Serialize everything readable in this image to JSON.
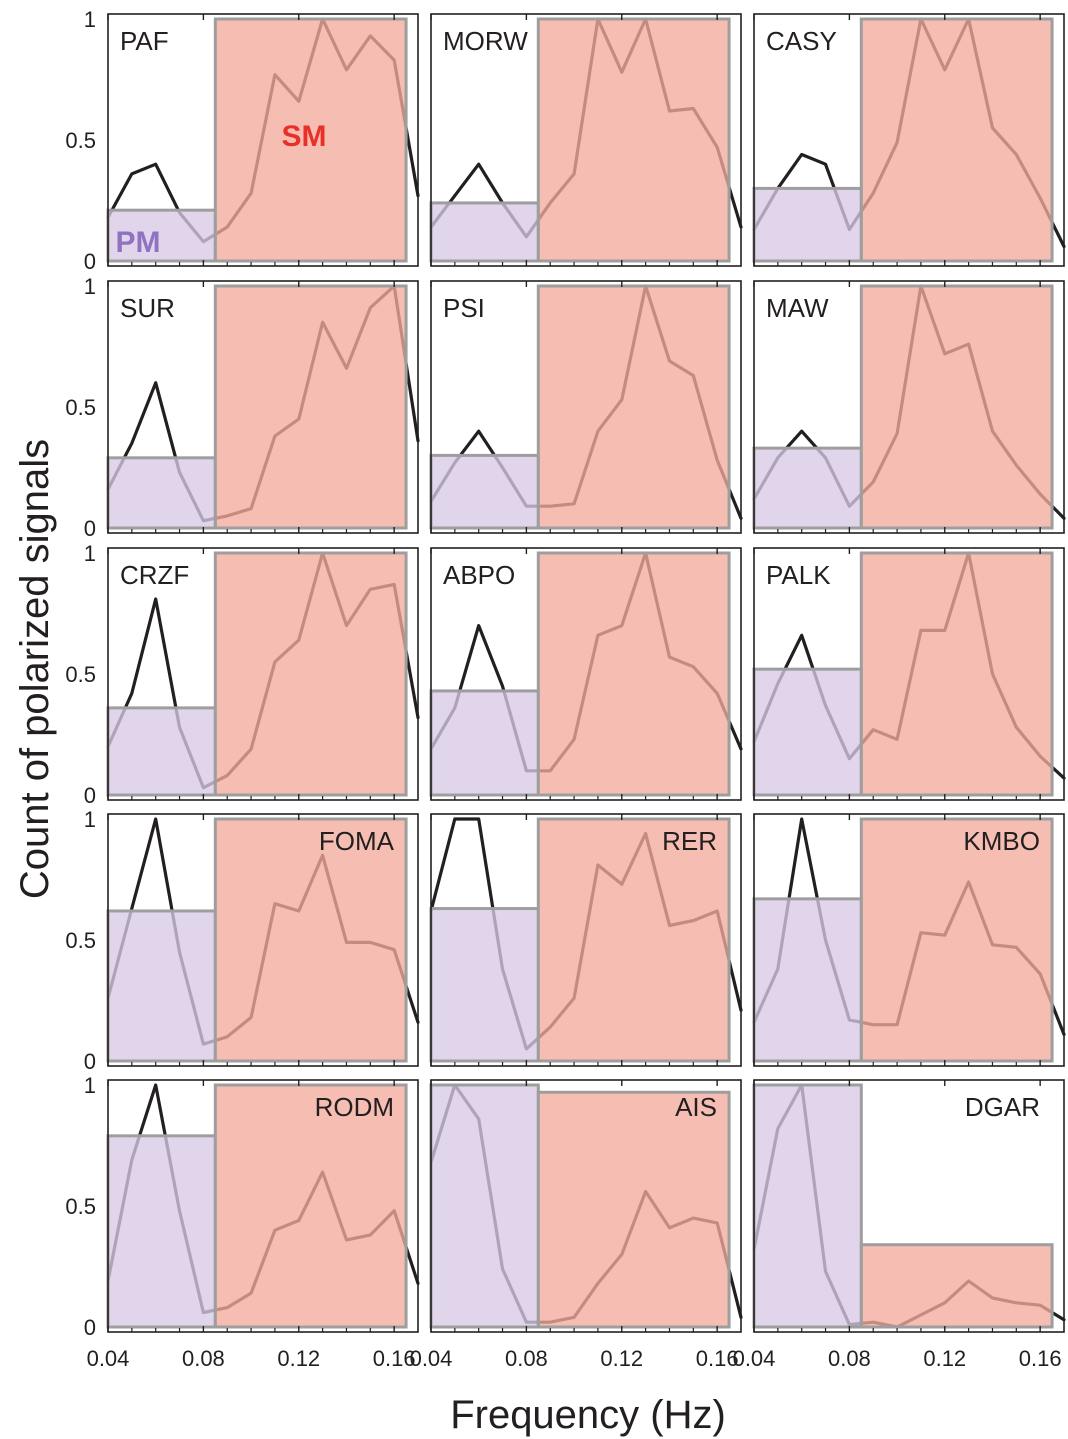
{
  "figure": {
    "ylabel": "Count of polarized signals",
    "xlabel": "Frequency (Hz)",
    "pm_label": "PM",
    "sm_label": "SM"
  },
  "colors": {
    "pm_fill": "#d7c9e4",
    "sm_fill": "#f4ab9c",
    "box_border": "#9e9e9e",
    "curve": "#231f20",
    "sm_label": "#e8302a",
    "pm_label": "#8f72c0"
  },
  "chart_data": {
    "type": "line",
    "xlabel": "Frequency (Hz)",
    "ylabel": "Count of polarized signals",
    "xlim": [
      0.04,
      0.17
    ],
    "ylim": [
      0,
      1
    ],
    "x_ticks": [
      "0.04",
      "0.08",
      "0.12",
      "0.16"
    ],
    "y_ticks": [
      "0",
      "0.5",
      "1"
    ],
    "frequencies": [
      0.04,
      0.05,
      0.06,
      0.07,
      0.08,
      0.09,
      0.1,
      0.11,
      0.12,
      0.13,
      0.14,
      0.15,
      0.16,
      0.17
    ],
    "pm_band": [
      0.04,
      0.085
    ],
    "sm_band": [
      0.085,
      0.165
    ],
    "panels": [
      {
        "station": "PAF",
        "pm_level": 0.21,
        "sm_level": 1.0,
        "values": [
          0.18,
          0.36,
          0.4,
          0.2,
          0.08,
          0.14,
          0.28,
          0.77,
          0.66,
          1.0,
          0.79,
          0.93,
          0.83,
          0.27
        ]
      },
      {
        "station": "MORW",
        "pm_level": 0.24,
        "sm_level": 1.0,
        "values": [
          0.14,
          0.27,
          0.4,
          0.24,
          0.1,
          0.24,
          0.36,
          1.0,
          0.78,
          1.0,
          0.62,
          0.63,
          0.47,
          0.14
        ]
      },
      {
        "station": "CASY",
        "pm_level": 0.3,
        "sm_level": 1.0,
        "values": [
          0.13,
          0.3,
          0.44,
          0.4,
          0.13,
          0.28,
          0.49,
          1.0,
          0.79,
          1.0,
          0.55,
          0.44,
          0.26,
          0.06
        ]
      },
      {
        "station": "SUR",
        "pm_level": 0.29,
        "sm_level": 1.0,
        "values": [
          0.16,
          0.35,
          0.6,
          0.23,
          0.03,
          0.05,
          0.08,
          0.38,
          0.45,
          0.85,
          0.66,
          0.91,
          1.0,
          0.36
        ]
      },
      {
        "station": "PSI",
        "pm_level": 0.3,
        "sm_level": 1.0,
        "values": [
          0.11,
          0.27,
          0.4,
          0.25,
          0.09,
          0.09,
          0.1,
          0.4,
          0.53,
          1.0,
          0.69,
          0.63,
          0.28,
          0.04
        ]
      },
      {
        "station": "MAW",
        "pm_level": 0.33,
        "sm_level": 1.0,
        "values": [
          0.12,
          0.29,
          0.4,
          0.29,
          0.09,
          0.19,
          0.39,
          1.0,
          0.72,
          0.76,
          0.4,
          0.26,
          0.14,
          0.04
        ]
      },
      {
        "station": "CRZF",
        "pm_level": 0.36,
        "sm_level": 1.0,
        "values": [
          0.2,
          0.42,
          0.81,
          0.28,
          0.03,
          0.08,
          0.19,
          0.55,
          0.64,
          1.0,
          0.7,
          0.85,
          0.87,
          0.32
        ]
      },
      {
        "station": "ABPO",
        "pm_level": 0.43,
        "sm_level": 1.0,
        "values": [
          0.19,
          0.36,
          0.7,
          0.45,
          0.1,
          0.1,
          0.23,
          0.66,
          0.7,
          1.0,
          0.57,
          0.53,
          0.42,
          0.19
        ]
      },
      {
        "station": "PALK",
        "pm_level": 0.52,
        "sm_level": 1.0,
        "values": [
          0.22,
          0.46,
          0.66,
          0.37,
          0.15,
          0.27,
          0.23,
          0.68,
          0.68,
          1.0,
          0.5,
          0.28,
          0.16,
          0.07
        ]
      },
      {
        "station": "FOMA",
        "pm_level": 0.62,
        "sm_level": 1.0,
        "values": [
          0.26,
          0.63,
          1.0,
          0.45,
          0.07,
          0.1,
          0.18,
          0.65,
          0.62,
          0.85,
          0.49,
          0.49,
          0.46,
          0.16
        ]
      },
      {
        "station": "RER",
        "pm_level": 0.63,
        "sm_level": 1.0,
        "values": [
          0.62,
          1.0,
          1.0,
          0.38,
          0.05,
          0.14,
          0.26,
          0.81,
          0.73,
          0.94,
          0.56,
          0.58,
          0.62,
          0.21
        ]
      },
      {
        "station": "KMBO",
        "pm_level": 0.67,
        "sm_level": 1.0,
        "values": [
          0.16,
          0.38,
          1.0,
          0.5,
          0.17,
          0.15,
          0.15,
          0.53,
          0.52,
          0.74,
          0.48,
          0.47,
          0.36,
          0.11
        ]
      },
      {
        "station": "RODM",
        "pm_level": 0.79,
        "sm_level": 1.0,
        "values": [
          0.19,
          0.69,
          1.0,
          0.48,
          0.06,
          0.08,
          0.14,
          0.4,
          0.44,
          0.64,
          0.36,
          0.38,
          0.48,
          0.18
        ]
      },
      {
        "station": "AIS",
        "pm_level": 1.0,
        "sm_level": 0.97,
        "values": [
          0.68,
          1.0,
          0.86,
          0.24,
          0.02,
          0.02,
          0.04,
          0.18,
          0.3,
          0.56,
          0.41,
          0.45,
          0.43,
          0.04
        ]
      },
      {
        "station": "DGAR",
        "pm_level": 1.0,
        "sm_level": 0.34,
        "values": [
          0.32,
          0.82,
          1.0,
          0.23,
          0.01,
          0.02,
          0.0,
          0.05,
          0.1,
          0.19,
          0.12,
          0.1,
          0.09,
          0.03
        ]
      }
    ]
  }
}
